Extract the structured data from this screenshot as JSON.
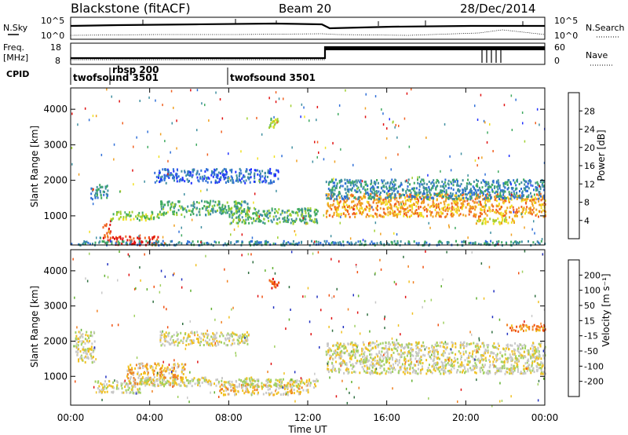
{
  "header": {
    "radar": "Blackstone (fitACF)",
    "beam": "Beam 20",
    "date": "28/Dec/2014"
  },
  "panels": {
    "noise": {
      "left_label": "N.Sky",
      "right_label": "N.Search",
      "left_ticks": [
        "10^5",
        "10^0"
      ],
      "right_ticks": [
        "10^5",
        "10^0"
      ]
    },
    "freq": {
      "left_label_1": "Freq.",
      "left_label_2": "[MHz]",
      "right_label": "Nave",
      "left_ticks": [
        "18",
        "8"
      ],
      "right_ticks": [
        "60",
        "0"
      ]
    },
    "cpid": {
      "label": "CPID",
      "programs": [
        {
          "name": "twofsound 3501",
          "start": "00:00"
        },
        {
          "name": "rbsp 200",
          "start": "02:00"
        },
        {
          "name": "twofsound 3501",
          "start": "08:00"
        }
      ]
    }
  },
  "x_axis": {
    "label": "Time UT",
    "ticks": [
      "00:00",
      "04:00",
      "08:00",
      "12:00",
      "16:00",
      "20:00",
      "00:00"
    ]
  },
  "chart_data": [
    {
      "type": "heatmap",
      "name": "power-panel",
      "ylabel": "Slant Range [km]",
      "ylim": [
        180,
        4600
      ],
      "yticks": [
        1000,
        2000,
        3000,
        4000
      ],
      "xlim_hours": [
        0,
        24
      ],
      "colorbar": {
        "label": "Power [dB]",
        "ticks": [
          "4",
          "8",
          "12",
          "16",
          "20",
          "24",
          "28"
        ],
        "colors": [
          "#2030ff",
          "#2f6fd8",
          "#3f8fa0",
          "#3faa60",
          "#9fd030",
          "#f0e020",
          "#f0a020",
          "#f06020",
          "#e01010"
        ]
      },
      "echo_regions": [
        {
          "t": [
            1.0,
            1.9
          ],
          "r": [
            1500,
            1900
          ],
          "level": 2
        },
        {
          "t": [
            1.6,
            2.0
          ],
          "r": [
            260,
            900
          ],
          "level": 7
        },
        {
          "t": [
            2.0,
            4.4
          ],
          "r": [
            200,
            450
          ],
          "level": 8
        },
        {
          "t": [
            2.0,
            4.5
          ],
          "r": [
            900,
            1150
          ],
          "level": 4
        },
        {
          "t": [
            4.5,
            9.0
          ],
          "r": [
            1050,
            1450
          ],
          "level": 3
        },
        {
          "t": [
            8.0,
            12.5
          ],
          "r": [
            800,
            1250
          ],
          "level": 3
        },
        {
          "t": [
            4.2,
            10.5
          ],
          "r": [
            1950,
            2350
          ],
          "level": 1
        },
        {
          "t": [
            0.0,
            24.0
          ],
          "r": [
            200,
            320
          ],
          "level": 2
        },
        {
          "t": [
            12.9,
            24.0
          ],
          "r": [
            1000,
            1650
          ],
          "level": 6
        },
        {
          "t": [
            12.9,
            24.0
          ],
          "r": [
            1500,
            2050
          ],
          "level": 2
        },
        {
          "t": [
            20.5,
            22.5
          ],
          "r": [
            800,
            1000
          ],
          "level": 5
        },
        {
          "t": [
            10.0,
            10.5
          ],
          "r": [
            3500,
            3800
          ],
          "level": 4
        }
      ]
    },
    {
      "type": "heatmap",
      "name": "velocity-panel",
      "ylabel": "Slant Range [km]",
      "ylim": [
        180,
        4600
      ],
      "yticks": [
        1000,
        2000,
        3000,
        4000
      ],
      "xlim_hours": [
        0,
        24
      ],
      "colorbar": {
        "label": "Velocity [m s⁻¹]",
        "ticks": [
          "200",
          "100",
          "50",
          "15",
          "-15",
          "-50",
          "-100",
          "-200"
        ],
        "colors": [
          "#2030c0",
          "#2f6f40",
          "#60b030",
          "#a0d060",
          "#c8c8c8",
          "#f0c020",
          "#f08020",
          "#f05010",
          "#e01010"
        ]
      },
      "echo_regions": [
        {
          "t": [
            0.2,
            1.2
          ],
          "r": [
            1400,
            2300
          ],
          "level": 4
        },
        {
          "t": [
            1.2,
            3.5
          ],
          "r": [
            550,
            900
          ],
          "level": 4
        },
        {
          "t": [
            2.8,
            5.8
          ],
          "r": [
            750,
            1400
          ],
          "level": 5
        },
        {
          "t": [
            3.5,
            9.5
          ],
          "r": [
            750,
            1000
          ],
          "level": 4
        },
        {
          "t": [
            7.5,
            12.0
          ],
          "r": [
            500,
            800
          ],
          "level": 5
        },
        {
          "t": [
            4.5,
            9.0
          ],
          "r": [
            1900,
            2300
          ],
          "level": 4
        },
        {
          "t": [
            8.5,
            12.5
          ],
          "r": [
            700,
            950
          ],
          "level": 4
        },
        {
          "t": [
            12.9,
            24.0
          ],
          "r": [
            1100,
            2000
          ],
          "level": 4
        },
        {
          "t": [
            22.0,
            24.0
          ],
          "r": [
            2300,
            2500
          ],
          "level": 6
        },
        {
          "t": [
            10.0,
            10.5
          ],
          "r": [
            3500,
            3800
          ],
          "level": 7
        }
      ]
    }
  ]
}
